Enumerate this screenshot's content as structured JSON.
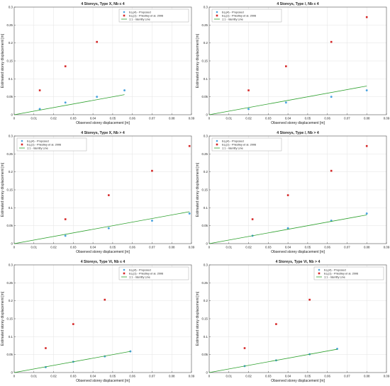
{
  "chart_data": [
    {
      "type": "scatter",
      "title": "4 Storeys, Type X, Nb ≤ 4",
      "xlabel": "Observed storey displacement [m]",
      "ylabel": "Estimated storey displacement [m]",
      "xlim": [
        0,
        0.09
      ],
      "ylim": [
        0,
        0.3
      ],
      "x_ticks": [
        "0",
        "0.01",
        "0.02",
        "0.03",
        "0.04",
        "0.05",
        "0.06",
        "0.07",
        "0.08",
        "0.09"
      ],
      "y_ticks": [
        "0",
        "0.05",
        "0.1",
        "0.15",
        "0.2",
        "0.25",
        "0.3"
      ],
      "grid": true,
      "legend_position": "top-right",
      "series": [
        {
          "name": "Eq.(4) - Proposed",
          "color": "#4aa3df",
          "x": [
            0.013,
            0.026,
            0.042,
            0.056
          ],
          "y": [
            0.016,
            0.034,
            0.05,
            0.068
          ]
        },
        {
          "name": "Eq.(1) - Priestley et al. 2006",
          "color": "#d62728",
          "x": [
            0.013,
            0.026,
            0.042,
            0.056
          ],
          "y": [
            0.068,
            0.135,
            0.203,
            0.272
          ]
        },
        {
          "name": "1:1 - Identity Line",
          "color": "#2ca02c",
          "x": [
            0,
            0.056
          ],
          "y": [
            0,
            0.056
          ]
        }
      ]
    },
    {
      "type": "scatter",
      "title": "4 Storeys, Type /, Nb ≤ 4",
      "xlabel": "Observed storey displacement [m]",
      "ylabel": "Estimated storey displacement [m]",
      "xlim": [
        0,
        0.09
      ],
      "ylim": [
        0,
        0.3
      ],
      "x_ticks": [
        "0",
        "0.01",
        "0.02",
        "0.03",
        "0.04",
        "0.05",
        "0.06",
        "0.07",
        "0.08",
        "0.09"
      ],
      "y_ticks": [
        "0",
        "0.05",
        "0.1",
        "0.15",
        "0.2",
        "0.25",
        "0.3"
      ],
      "grid": true,
      "legend_position": "top-left",
      "series": [
        {
          "name": "Eq.(4) - Proposed",
          "color": "#4aa3df",
          "x": [
            0.02,
            0.039,
            0.062,
            0.08
          ],
          "y": [
            0.016,
            0.034,
            0.05,
            0.068
          ]
        },
        {
          "name": "Eq.(1) - Priestley et al. 2006",
          "color": "#d62728",
          "x": [
            0.02,
            0.039,
            0.062,
            0.08
          ],
          "y": [
            0.068,
            0.135,
            0.203,
            0.272
          ]
        },
        {
          "name": "1:1 - Identity Line",
          "color": "#2ca02c",
          "x": [
            0,
            0.08
          ],
          "y": [
            0,
            0.08
          ]
        }
      ]
    },
    {
      "type": "scatter",
      "title": "4 Storeys, Type X, Nb > 4",
      "xlabel": "Observed storey displacement [m]",
      "ylabel": "Estimated storey displacement [m]",
      "xlim": [
        0,
        0.09
      ],
      "ylim": [
        0,
        0.3
      ],
      "x_ticks": [
        "0",
        "0.01",
        "0.02",
        "0.03",
        "0.04",
        "0.05",
        "0.06",
        "0.07",
        "0.08",
        "0.09"
      ],
      "y_ticks": [
        "0",
        "0.05",
        "0.1",
        "0.15",
        "0.2",
        "0.25",
        "0.3"
      ],
      "grid": true,
      "legend_position": "top-left",
      "series": [
        {
          "name": "Eq.(4) - Proposed",
          "color": "#4aa3df",
          "x": [
            0.026,
            0.048,
            0.07,
            0.089
          ],
          "y": [
            0.022,
            0.043,
            0.064,
            0.084
          ]
        },
        {
          "name": "Eq.(1) - Priestley et al. 2006",
          "color": "#d62728",
          "x": [
            0.026,
            0.048,
            0.07,
            0.089
          ],
          "y": [
            0.068,
            0.135,
            0.203,
            0.272
          ]
        },
        {
          "name": "1:1 - Identity Line",
          "color": "#2ca02c",
          "x": [
            0,
            0.089
          ],
          "y": [
            0,
            0.089
          ]
        }
      ]
    },
    {
      "type": "scatter",
      "title": "4 Storeys, Type /, Nb > 4",
      "xlabel": "Observed storey displacement [m]",
      "ylabel": "Estimated storey displacement [m]",
      "xlim": [
        0,
        0.09
      ],
      "ylim": [
        0,
        0.3
      ],
      "x_ticks": [
        "0",
        "0.01",
        "0.02",
        "0.03",
        "0.04",
        "0.05",
        "0.06",
        "0.07",
        "0.08",
        "0.09"
      ],
      "y_ticks": [
        "0",
        "0.05",
        "0.1",
        "0.15",
        "0.2",
        "0.25",
        "0.3"
      ],
      "grid": true,
      "legend_position": "top-left",
      "series": [
        {
          "name": "Eq.(4) - Proposed",
          "color": "#4aa3df",
          "x": [
            0.022,
            0.04,
            0.062,
            0.08
          ],
          "y": [
            0.022,
            0.043,
            0.064,
            0.084
          ]
        },
        {
          "name": "Eq.(1) - Priestley et al. 2006",
          "color": "#d62728",
          "x": [
            0.022,
            0.04,
            0.062,
            0.08
          ],
          "y": [
            0.068,
            0.135,
            0.203,
            0.272
          ]
        },
        {
          "name": "1:1 - Identity Line",
          "color": "#2ca02c",
          "x": [
            0,
            0.08
          ],
          "y": [
            0,
            0.08
          ]
        }
      ]
    },
    {
      "type": "scatter",
      "title": "4 Storeys, Type Vi, Nb ≤ 4",
      "xlabel": "Observed storey displacement [m]",
      "ylabel": "Estimated storey displacement [m]",
      "xlim": [
        0,
        0.09
      ],
      "ylim": [
        0,
        0.3
      ],
      "x_ticks": [
        "0",
        "0.01",
        "0.02",
        "0.03",
        "0.04",
        "0.05",
        "0.06",
        "0.07",
        "0.08",
        "0.09"
      ],
      "y_ticks": [
        "0",
        "0.05",
        "0.1",
        "0.15",
        "0.2",
        "0.25",
        "0.3"
      ],
      "grid": true,
      "legend_position": "top-right",
      "series": [
        {
          "name": "Eq.(4) - Proposed",
          "color": "#4aa3df",
          "x": [
            0.016,
            0.03,
            0.046,
            0.059
          ],
          "y": [
            0.015,
            0.03,
            0.045,
            0.059
          ]
        },
        {
          "name": "Eq.(1) - Priestley et al. 2006",
          "color": "#d62728",
          "x": [
            0.016,
            0.03,
            0.046,
            0.059
          ],
          "y": [
            0.068,
            0.135,
            0.203,
            0.272
          ]
        },
        {
          "name": "1:1 - Identity Line",
          "color": "#2ca02c",
          "x": [
            0,
            0.059
          ],
          "y": [
            0,
            0.059
          ]
        }
      ]
    },
    {
      "type": "scatter",
      "title": "4 Storeys, Type Vi, Nb > 4",
      "xlabel": "Observed storey displacement [m]",
      "ylabel": "Estimated storey displacement [m]",
      "xlim": [
        0,
        0.09
      ],
      "ylim": [
        0,
        0.3
      ],
      "x_ticks": [
        "0",
        "0.01",
        "0.02",
        "0.03",
        "0.04",
        "0.05",
        "0.06",
        "0.07",
        "0.08",
        "0.09"
      ],
      "y_ticks": [
        "0",
        "0.05",
        "0.1",
        "0.15",
        "0.2",
        "0.25",
        "0.3"
      ],
      "grid": true,
      "legend_position": "top-right",
      "series": [
        {
          "name": "Eq.(4) - Proposed",
          "color": "#4aa3df",
          "x": [
            0.018,
            0.034,
            0.051,
            0.065
          ],
          "y": [
            0.018,
            0.034,
            0.051,
            0.066
          ]
        },
        {
          "name": "Eq.(1) - Priestley et al. 2006",
          "color": "#d62728",
          "x": [
            0.018,
            0.034,
            0.051,
            0.065
          ],
          "y": [
            0.068,
            0.135,
            0.203,
            0.272
          ]
        },
        {
          "name": "1:1 - Identity Line",
          "color": "#2ca02c",
          "x": [
            0,
            0.065
          ],
          "y": [
            0,
            0.065
          ]
        }
      ]
    }
  ]
}
